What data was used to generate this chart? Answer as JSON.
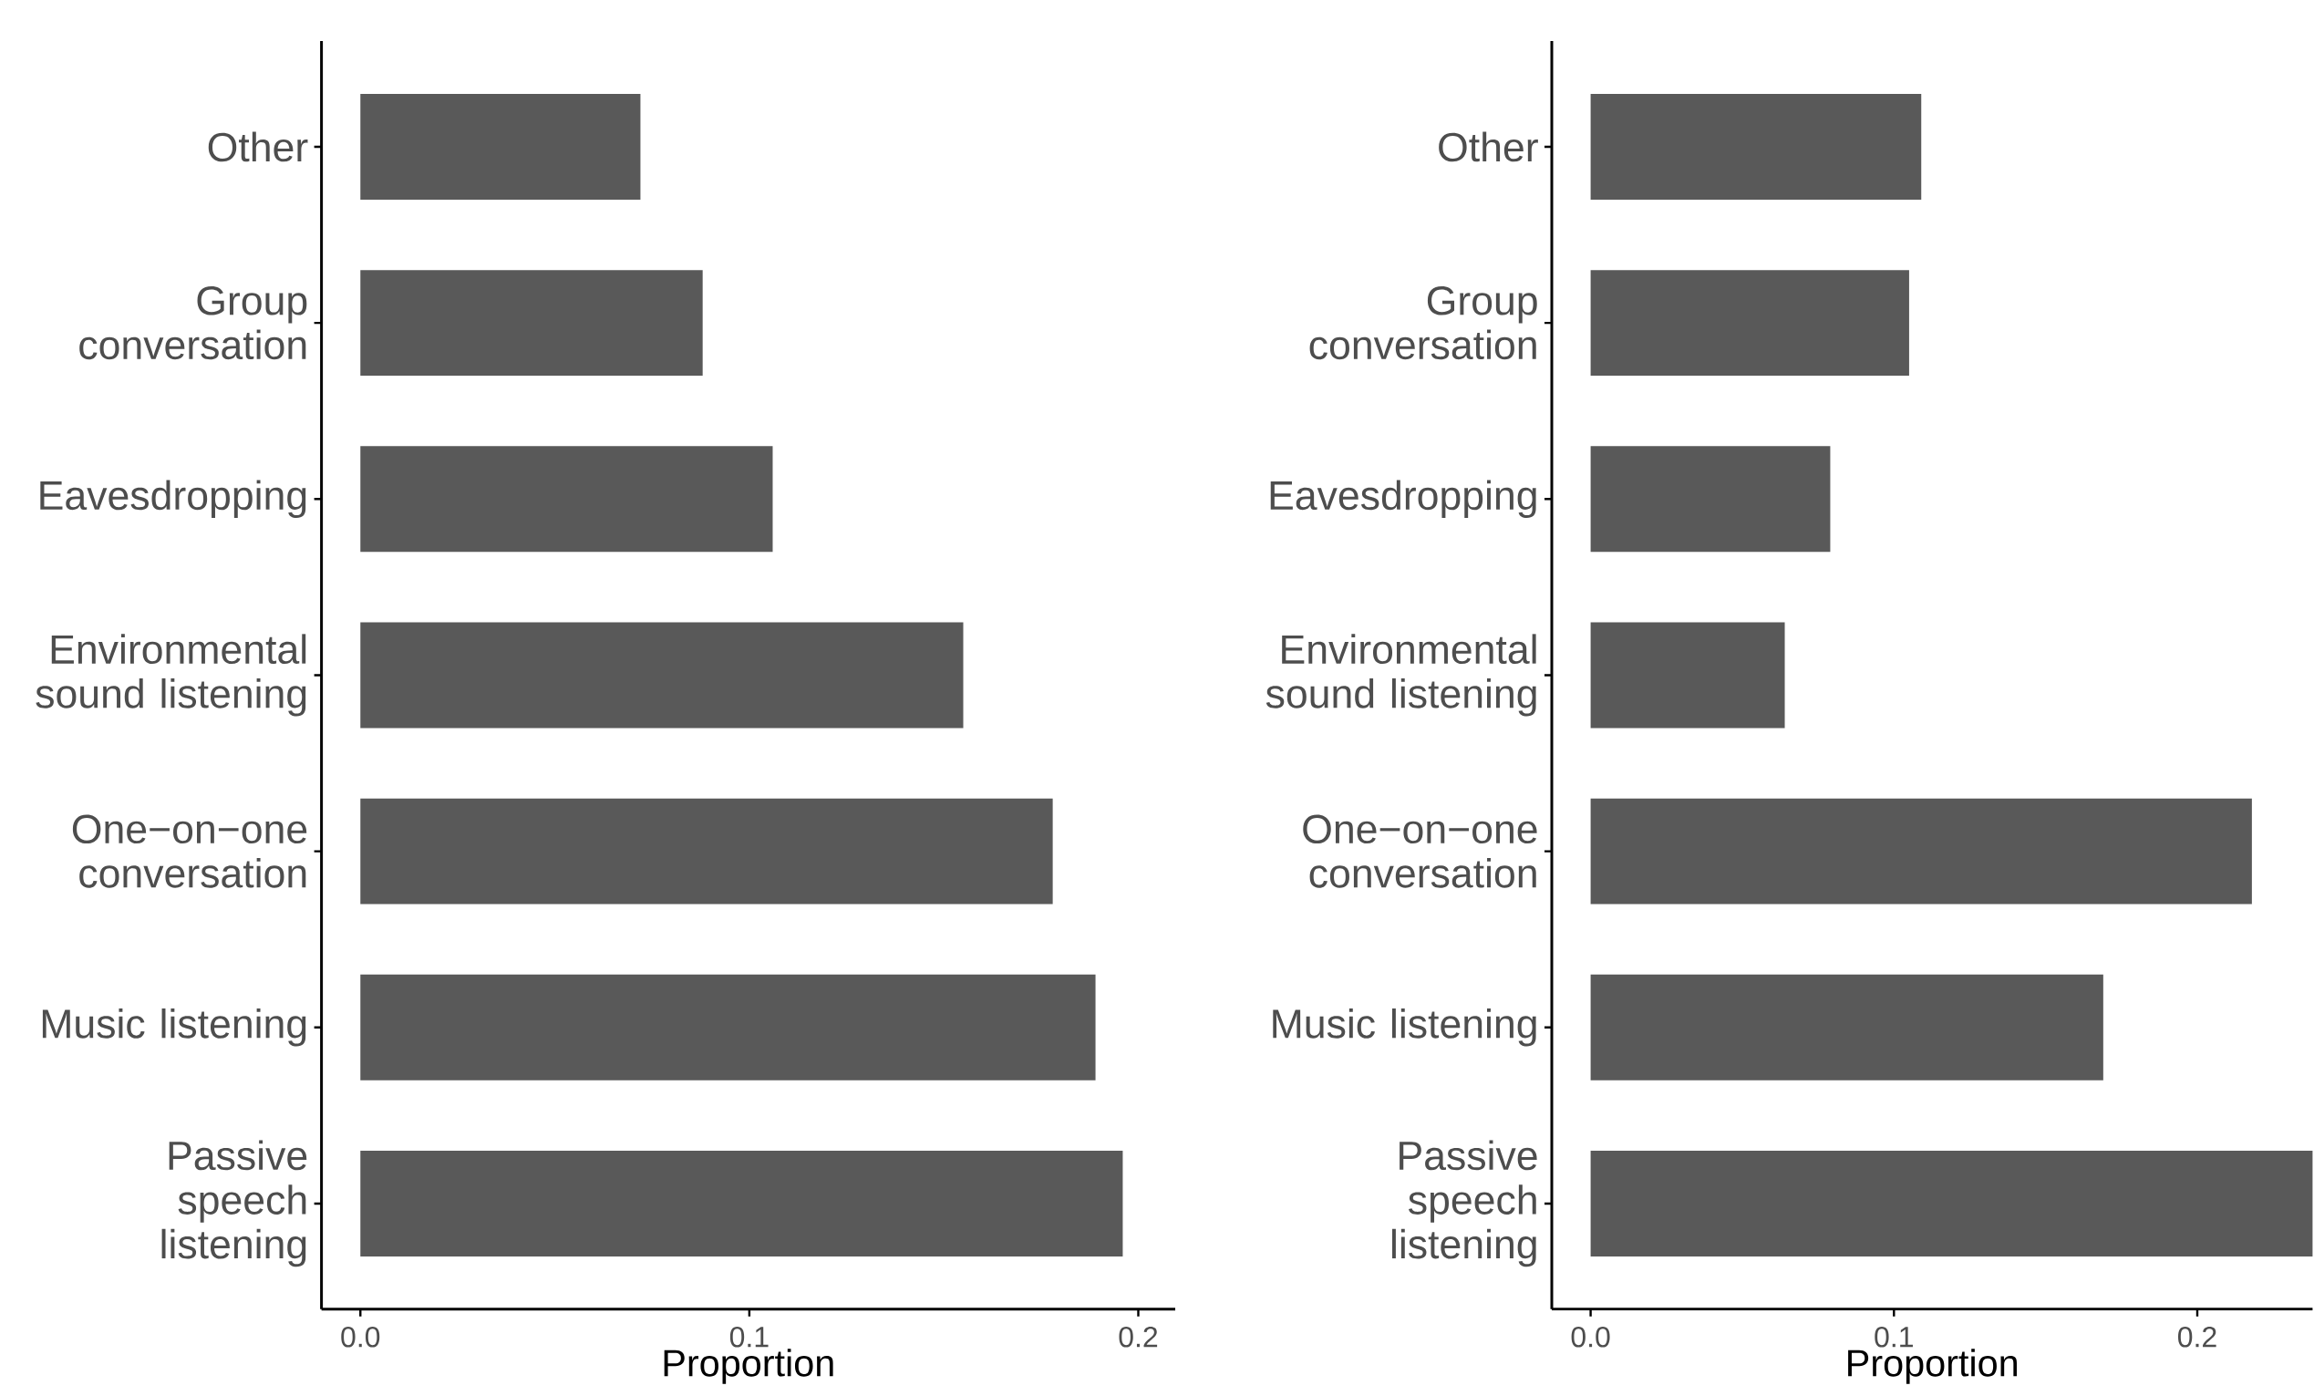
{
  "chart_data": [
    {
      "type": "bar",
      "orientation": "horizontal",
      "categories": [
        "Other",
        "Group conversation",
        "Eavesdropping",
        "Environmental sound listening",
        "One−on−one conversation",
        "Music listening",
        "Passive speech listening"
      ],
      "values": [
        0.072,
        0.088,
        0.106,
        0.155,
        0.178,
        0.189,
        0.196
      ],
      "color": "#595959",
      "xlim": [
        -0.01,
        0.2095
      ],
      "xticks": [
        {
          "value": 0,
          "label": "0.0"
        },
        {
          "value": 0.1,
          "label": "0.1"
        },
        {
          "value": 0.2,
          "label": "0.2"
        }
      ],
      "xlabel": "Proportion"
    },
    {
      "type": "bar",
      "orientation": "horizontal",
      "categories": [
        "Other",
        "Group conversation",
        "Eavesdropping",
        "Environmental sound listening",
        "One−on−one conversation",
        "Music listening",
        "Passive speech listening"
      ],
      "values": [
        0.109,
        0.105,
        0.079,
        0.064,
        0.218,
        0.169,
        0.238
      ],
      "color": "#595959",
      "xlim": [
        -0.0128,
        0.238
      ],
      "xticks": [
        {
          "value": 0,
          "label": "0.0"
        },
        {
          "value": 0.1,
          "label": "0.1"
        },
        {
          "value": 0.2,
          "label": "0.2"
        }
      ],
      "xlabel": "Proportion"
    }
  ]
}
